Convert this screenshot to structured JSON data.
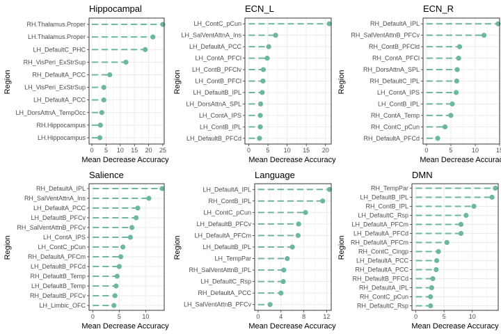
{
  "colors": {
    "accent": "#6db6a0",
    "grid": "#ebebeb",
    "panel_border": "#333333",
    "text": "#4d4d4d"
  },
  "chart_data": [
    {
      "type": "lollipop",
      "title": "Hippocampal",
      "xlabel": "Mean Decrease Accuracy",
      "ylabel": "Region",
      "xlim": [
        -1,
        25.5
      ],
      "xticks": [
        0,
        5,
        10,
        15,
        20,
        25
      ],
      "categories": [
        "RH.Thalamus.Proper",
        "LH.Thalamus.Proper",
        "LH_DefaultC_PHC",
        "RH_VisPeri_ExStrSup",
        "RH_DefaultA_PCC",
        "LH_VisPeri_ExStrSup",
        "LH_DefaultA_PCC",
        "LH_DorsAttnA_TempOcc",
        "RH.Hippocampus",
        "LH.Hippocampus"
      ],
      "values": [
        25,
        21.5,
        18.8,
        12,
        6.3,
        4.2,
        4.2,
        3.5,
        3,
        2.8
      ]
    },
    {
      "type": "lollipop",
      "title": "ECN_L",
      "xlabel": "Mean Decrease Accuracy",
      "ylabel": "Region",
      "xlim": [
        -1,
        21.5
      ],
      "xticks": [
        0,
        5,
        10,
        15,
        20
      ],
      "categories": [
        "LH_ContC_pCun",
        "LH_SalVentAttnA_Ins",
        "LH_DefaultA_PCC",
        "LH_ContA_PFCl",
        "LH_ContB_PFClv",
        "LH_ContB_PFCl",
        "LH_DefaultB_IPL",
        "LH_DorsAttnA_SPL",
        "LH_ContA_IPS",
        "LH_ContB_IPL",
        "LH_DefaultB_PFCd"
      ],
      "values": [
        21,
        7,
        5.2,
        4.8,
        3.8,
        3.7,
        3.5,
        3.1,
        3,
        3,
        2.8
      ]
    },
    {
      "type": "lollipop",
      "title": "ECN_R",
      "xlabel": "Mean Decrease Accuracy",
      "ylabel": "Region",
      "xlim": [
        -0.7,
        15
      ],
      "xticks": [
        0,
        5,
        10,
        15
      ],
      "categories": [
        "RH_DefaultA_IPL",
        "RH_SalVentAttnB_PFCv",
        "RH_ContB_PFCld",
        "RH_ContA_PFCl",
        "RH_DorsAttnA_SPL",
        "RH_DefaultC_IPL",
        "LH_ContA_IPS",
        "LH_ContB_IPL",
        "RH_ContA_Temp",
        "RH_ContC_pCun",
        "RH_DefaultA_PFCd"
      ],
      "values": [
        14.7,
        11.8,
        6.8,
        6.6,
        6.3,
        6.2,
        6.1,
        5.3,
        5,
        3.8,
        2.3
      ]
    },
    {
      "type": "lollipop",
      "title": "Salience",
      "xlabel": "Mean Decrease Accuracy",
      "ylabel": "Region",
      "xlim": [
        -0.7,
        13.5
      ],
      "xticks": [
        0,
        5,
        10
      ],
      "categories": [
        "RH_DefaultA_IPL",
        "RH_SalVentAttnA_Ins",
        "LH_DefaultA_PCC",
        "LH_DefaultB_PFCv",
        "RH_SalVentAttnB_PFCv",
        "LH_ContA_IPS",
        "LH_ContC_pCun",
        "RH_DefaultA_PFCm",
        "LH_DefaultB_PFCd",
        "RH_DefaultB_Temp",
        "LH_DefaultB_Temp",
        "RH_DefaultB_PFCv",
        "LH_Limbic_OFC"
      ],
      "values": [
        13.1,
        10.6,
        8.5,
        8.2,
        7.4,
        7.1,
        5.7,
        5.3,
        5,
        4.6,
        4.4,
        4.2,
        4
      ]
    },
    {
      "type": "lollipop",
      "title": "Language",
      "xlabel": "Mean Decrease Accuracy",
      "ylabel": "Region",
      "xlim": [
        -0.6,
        12.8
      ],
      "xticks": [
        0,
        4,
        8,
        12
      ],
      "categories": [
        "LH_DefaultA_IPL",
        "RH_ContB_IPL",
        "LH_ContC_pCun",
        "LH_DefaultB_PFCv",
        "LH_DefaultA_PFCm",
        "LH_DefaultB_IPL",
        "LH_TempPar",
        "RH_SalVentAttnB_IPL",
        "LH_DefaultC_Rsp",
        "RH_DefaultA_PCC",
        "LH_SalVentAttnB_PFCv"
      ],
      "values": [
        12.5,
        11.3,
        8.3,
        7.1,
        7,
        6,
        5.1,
        4.5,
        4.4,
        4,
        2.1
      ]
    },
    {
      "type": "lollipop",
      "title": "DMN",
      "xlabel": "Mean Decrease Accuracy",
      "ylabel": "Region",
      "xlim": [
        -0.7,
        14.6
      ],
      "xticks": [
        0,
        5,
        10
      ],
      "categories": [
        "RH_TempPar",
        "LH_DefaultB_IPL",
        "RH_ContB_IPL",
        "LH_DefaultC_Rsp",
        "LH_DefaultA_PFCm",
        "LH_DefaultA_PFCd",
        "RH_DefaultA_PFCm",
        "RH_ContC_Cingp",
        "LH_DefaultA_PCC",
        "RH_DefaultA_PCC",
        "RH_DefaultB_PFCd",
        "RH_DefaultA_IPL",
        "RH_ContC_pCun",
        "RH_DefaultC_Rsp"
      ],
      "values": [
        14.1,
        13.5,
        10.3,
        8.9,
        8,
        8,
        5.5,
        4,
        3.7,
        3.6,
        3,
        2.8,
        2.6,
        2.6
      ]
    }
  ]
}
